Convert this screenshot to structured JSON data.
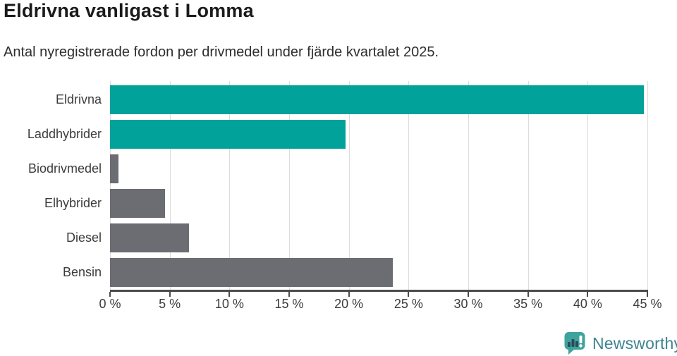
{
  "header": {
    "title": "Eldrivna vanligast i Lomma",
    "subtitle": "Antal nyregistrerade fordon per drivmedel under fjärde kvartalet 2025."
  },
  "chart_data": {
    "type": "bar",
    "orientation": "horizontal",
    "title": "Eldrivna vanligast i Lomma",
    "subtitle": "Antal nyregistrerade fordon per drivmedel under fjärde kvartalet 2025.",
    "categories": [
      "Eldrivna",
      "Laddhybrider",
      "Biodrivmedel",
      "Elhybrider",
      "Diesel",
      "Bensin"
    ],
    "values": [
      44.7,
      19.7,
      0.7,
      4.6,
      6.6,
      23.7
    ],
    "unit": "%",
    "bar_colors": [
      "#00a29a",
      "#00a29a",
      "#6c6c73",
      "#6c6c73",
      "#6c6c73",
      "#6c6c73"
    ],
    "xlim": [
      0,
      45
    ],
    "x_ticks": [
      0,
      5,
      10,
      15,
      20,
      25,
      30,
      35,
      40,
      45
    ],
    "x_tick_suffix": " %",
    "grid": true,
    "legend": "none"
  },
  "colors": {
    "accent_teal": "#00a29a",
    "neutral_gray": "#6c6c73",
    "gridline": "#dcdcdc",
    "axis": "#4b4b4b",
    "title_text": "#1b1b1b",
    "label_text": "#3c3c3c"
  },
  "footer": {
    "brand": "Newsworthy",
    "logo_icon": "newsworthy-logo",
    "brand_text_color": "#3e8391",
    "logo_bubble_color": "#3fa39d",
    "logo_bar_color": "#2b4c5a"
  }
}
